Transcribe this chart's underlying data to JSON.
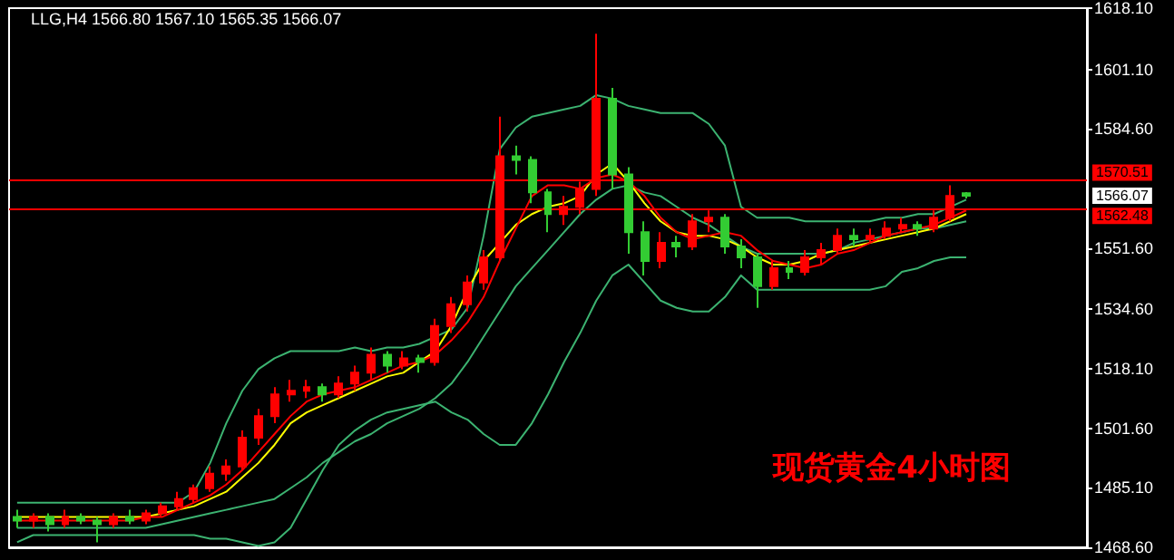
{
  "chart_data": {
    "type": "candlestick",
    "title": "LLG,H4 1566.80 1567.10 1565.35 1566.07",
    "categories": [
      null,
      null,
      null,
      null,
      null,
      null,
      null,
      null,
      null,
      null,
      null,
      null,
      null,
      null,
      null,
      null,
      null,
      null,
      null,
      null,
      null,
      null,
      null,
      null,
      null,
      null,
      null,
      null,
      null,
      null,
      null,
      null,
      null,
      null,
      null,
      null,
      null,
      null,
      null,
      null,
      null,
      null,
      null,
      null,
      null,
      null,
      null,
      null,
      null,
      null,
      null,
      null,
      null,
      null,
      null,
      null,
      null,
      null,
      null,
      null
    ],
    "colors": [
      "#33cc33",
      "#ff0000",
      "#33cc33",
      "#ff0000",
      "#33cc33",
      "#33cc33",
      "#ff0000",
      "#33cc33",
      "#ff0000",
      "#ff0000",
      "#ff0000",
      "#ff0000",
      "#ff0000",
      "#ff0000",
      "#ff0000",
      "#ff0000",
      "#ff0000",
      "#ff0000",
      "#ff0000",
      "#33cc33",
      "#ff0000",
      "#ff0000",
      "#ff0000",
      "#33cc33",
      "#ff0000",
      "#33cc33",
      "#ff0000",
      "#ff0000",
      "#ff0000",
      "#ff0000",
      "#ff0000",
      "#33cc33",
      "#33cc33",
      "#33cc33",
      "#ff0000",
      "#ff0000",
      "#ff0000",
      "#33cc33",
      "#33cc33",
      "#33cc33",
      "#ff0000",
      "#33cc33",
      "#ff0000",
      "#ff0000",
      "#33cc33",
      "#33cc33",
      "#33cc33",
      "#ff0000",
      "#33cc33",
      "#ff0000",
      "#ff0000",
      "#ff0000",
      "#33cc33",
      "#ff0000",
      "#ff0000",
      "#ff0000",
      "#33cc33",
      "#ff0000",
      "#ff0000",
      "#33cc33"
    ],
    "ohlc": [
      [
        1477,
        1479,
        1474,
        1476
      ],
      [
        1476,
        1478,
        1474,
        1477
      ],
      [
        1477,
        1478,
        1473,
        1475
      ],
      [
        1475,
        1479,
        1474,
        1477
      ],
      [
        1477,
        1478,
        1475,
        1476
      ],
      [
        1476,
        1477,
        1470,
        1475
      ],
      [
        1475,
        1478,
        1474,
        1477
      ],
      [
        1477,
        1479,
        1475,
        1476
      ],
      [
        1476,
        1479,
        1475,
        1478
      ],
      [
        1478,
        1481,
        1477,
        1480
      ],
      [
        1480,
        1484,
        1479,
        1482
      ],
      [
        1482,
        1486,
        1481,
        1485
      ],
      [
        1485,
        1491,
        1484,
        1489
      ],
      [
        1489,
        1493,
        1487,
        1491
      ],
      [
        1491,
        1501,
        1490,
        1499
      ],
      [
        1499,
        1507,
        1497,
        1505
      ],
      [
        1505,
        1513,
        1503,
        1511
      ],
      [
        1511,
        1515,
        1509,
        1512
      ],
      [
        1512,
        1515,
        1510,
        1513
      ],
      [
        1513,
        1514,
        1509,
        1511
      ],
      [
        1511,
        1516,
        1510,
        1514
      ],
      [
        1514,
        1519,
        1512,
        1517
      ],
      [
        1517,
        1524,
        1515,
        1522
      ],
      [
        1522,
        1523,
        1517,
        1519
      ],
      [
        1519,
        1523,
        1518,
        1521
      ],
      [
        1521,
        1522,
        1517,
        1520
      ],
      [
        1520,
        1532,
        1519,
        1530
      ],
      [
        1530,
        1538,
        1528,
        1536
      ],
      [
        1536,
        1544,
        1534,
        1542
      ],
      [
        1542,
        1551,
        1540,
        1549
      ],
      [
        1549,
        1588,
        1548,
        1577
      ],
      [
        1577,
        1580,
        1572,
        1576
      ],
      [
        1576,
        1577,
        1564,
        1567
      ],
      [
        1567,
        1568,
        1556,
        1561
      ],
      [
        1561,
        1566,
        1558,
        1563
      ],
      [
        1563,
        1570,
        1561,
        1568
      ],
      [
        1568,
        1611,
        1566,
        1593
      ],
      [
        1593,
        1596,
        1568,
        1572
      ],
      [
        1572,
        1574,
        1550,
        1556
      ],
      [
        1556,
        1559,
        1544,
        1548
      ],
      [
        1548,
        1556,
        1546,
        1553
      ],
      [
        1553,
        1555,
        1549,
        1552
      ],
      [
        1552,
        1561,
        1551,
        1559
      ],
      [
        1559,
        1562,
        1556,
        1560
      ],
      [
        1560,
        1561,
        1550,
        1552
      ],
      [
        1552,
        1554,
        1546,
        1549
      ],
      [
        1549,
        1550,
        1535,
        1541
      ],
      [
        1541,
        1548,
        1540,
        1546
      ],
      [
        1546,
        1548,
        1543,
        1545
      ],
      [
        1545,
        1551,
        1544,
        1549
      ],
      [
        1549,
        1553,
        1547,
        1551
      ],
      [
        1551,
        1557,
        1550,
        1555
      ],
      [
        1555,
        1557,
        1552,
        1554
      ],
      [
        1554,
        1557,
        1553,
        1555
      ],
      [
        1555,
        1559,
        1554,
        1557
      ],
      [
        1557,
        1560,
        1556,
        1558
      ],
      [
        1558,
        1559,
        1555,
        1557
      ],
      [
        1557,
        1562,
        1556,
        1560
      ],
      [
        1560,
        1569,
        1559,
        1566
      ],
      [
        1566.8,
        1567.1,
        1565.35,
        1566.07
      ]
    ],
    "series": [
      {
        "type": "line",
        "color": "#3cb371",
        "values": [
          1481,
          1481,
          1481,
          1481,
          1481,
          1481,
          1481,
          1481,
          1481,
          1481,
          1481,
          1484,
          1492,
          1503,
          1512,
          1518,
          1521,
          1523,
          1523,
          1523,
          1523,
          1524,
          1523,
          1524,
          1524,
          1525,
          1527,
          1529,
          1535,
          1555,
          1579,
          1585,
          1588,
          1589,
          1590,
          1591,
          1594,
          1593,
          1591,
          1590,
          1589,
          1589,
          1589,
          1586,
          1580,
          1563,
          1560,
          1560,
          1560,
          1559,
          1559,
          1559,
          1559,
          1559,
          1560,
          1560,
          1561,
          1561,
          1563,
          1565
        ]
      },
      {
        "type": "line",
        "color": "#3cb371",
        "values": [
          1474,
          1474,
          1474,
          1474,
          1474,
          1474,
          1474,
          1474,
          1474,
          1475,
          1476,
          1477,
          1478,
          1479,
          1480,
          1481,
          1482,
          1485,
          1488,
          1492,
          1495,
          1498,
          1500,
          1503,
          1505,
          1507,
          1510,
          1514,
          1520,
          1527,
          1534,
          1541,
          1546,
          1551,
          1556,
          1561,
          1565,
          1568,
          1569,
          1567,
          1566,
          1563,
          1560,
          1558,
          1555,
          1552,
          1550,
          1550,
          1550,
          1550,
          1550,
          1551,
          1553,
          1554,
          1555,
          1556,
          1557,
          1557,
          1558,
          1559
        ]
      },
      {
        "type": "line",
        "color": "#3cb371",
        "values": [
          1470,
          1472,
          1472,
          1472,
          1472,
          1472,
          1472,
          1472,
          1472,
          1472,
          1472,
          1472,
          1471,
          1471,
          1470,
          1469,
          1470,
          1474,
          1482,
          1490,
          1497,
          1501,
          1504,
          1506,
          1507,
          1508,
          1509,
          1506,
          1504,
          1500,
          1497,
          1497,
          1503,
          1511,
          1520,
          1528,
          1537,
          1544,
          1547,
          1542,
          1537,
          1535,
          1534,
          1534,
          1538,
          1544,
          1540,
          1540,
          1540,
          1540,
          1540,
          1540,
          1540,
          1540,
          1541,
          1545,
          1546,
          1548,
          1549,
          1549
        ]
      },
      {
        "type": "line",
        "color": "#ffff00",
        "values": [
          1477,
          1477,
          1477,
          1477,
          1477,
          1477,
          1477,
          1477,
          1477,
          1478,
          1479,
          1480,
          1482,
          1484,
          1488,
          1492,
          1497,
          1503,
          1506,
          1508,
          1510,
          1512,
          1514,
          1516,
          1517,
          1520,
          1523,
          1530,
          1540,
          1548,
          1553,
          1558,
          1561,
          1563,
          1564,
          1566,
          1572,
          1575,
          1570,
          1564,
          1559,
          1556,
          1555,
          1555,
          1554,
          1552,
          1549,
          1547,
          1547,
          1548,
          1550,
          1551,
          1552,
          1553,
          1554,
          1555,
          1556,
          1557,
          1559,
          1561
        ]
      },
      {
        "type": "line",
        "color": "#ff0000",
        "values": [
          1476,
          1476,
          1476,
          1476,
          1476,
          1476,
          1476,
          1476,
          1477,
          1477,
          1479,
          1481,
          1483,
          1486,
          1490,
          1495,
          1500,
          1505,
          1509,
          1511,
          1512,
          1513,
          1515,
          1517,
          1519,
          1520,
          1522,
          1526,
          1531,
          1538,
          1548,
          1557,
          1566,
          1569,
          1569,
          1568,
          1571,
          1572,
          1570,
          1566,
          1560,
          1556,
          1554,
          1555,
          1556,
          1555,
          1551,
          1548,
          1547,
          1546,
          1547,
          1550,
          1551,
          1553,
          1555,
          1556,
          1557,
          1558,
          1560,
          1562
        ]
      }
    ],
    "ylim": [
      1468.6,
      1618.1
    ],
    "yticks": [
      {
        "value": 1468.6,
        "label": "1468.60"
      },
      {
        "value": 1485.1,
        "label": "1485.10"
      },
      {
        "value": 1501.6,
        "label": "1501.60"
      },
      {
        "value": 1518.1,
        "label": "1518.10"
      },
      {
        "value": 1534.6,
        "label": "1534.60"
      },
      {
        "value": 1551.6,
        "label": "1551.60"
      },
      {
        "value": 1584.6,
        "label": "1584.60"
      },
      {
        "value": 1601.1,
        "label": "1601.10"
      },
      {
        "value": 1618.1,
        "label": "1618.10"
      }
    ],
    "tick_labels": "y",
    "ref_lines": [
      {
        "axis": "y",
        "value": 1570.51,
        "label": "1570.51",
        "color": "#ff0000"
      },
      {
        "axis": "y",
        "value": 1562.48,
        "label": "1562.48",
        "color": "#ff0000"
      }
    ],
    "annotations": [
      "1566.07",
      "现货黄金4小时图"
    ]
  }
}
